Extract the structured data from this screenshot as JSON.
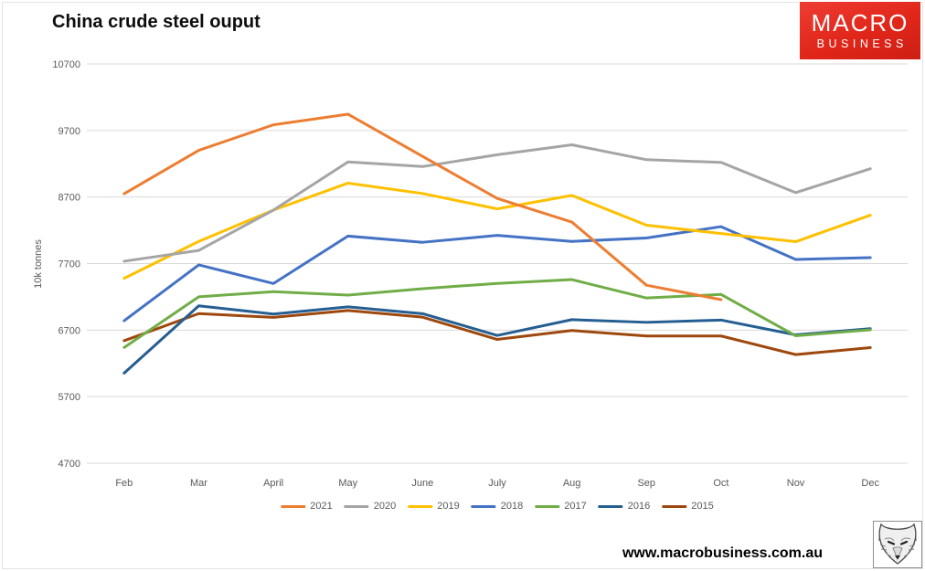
{
  "header": {
    "title": "China crude steel ouput"
  },
  "logo": {
    "line1": "MACRO",
    "line2": "BUSINESS",
    "bg_color": "#e02619",
    "text_color": "#ffffff"
  },
  "footer": {
    "website": "www.macrobusiness.com.au"
  },
  "axis_style": {
    "tick_color": "#595959",
    "grid_color": "#d9d9d9"
  },
  "chart_data": {
    "type": "line",
    "title": "China crude steel ouput",
    "xlabel": "",
    "ylabel": "10k tonnes",
    "categories": [
      "Feb",
      "Mar",
      "April",
      "May",
      "June",
      "July",
      "Aug",
      "Sep",
      "Oct",
      "Nov",
      "Dec"
    ],
    "ylim": [
      4700,
      10700
    ],
    "yticks": [
      10700,
      9700,
      8700,
      7700,
      6700,
      5700,
      4700
    ],
    "grid": "horizontal",
    "legend_position": "bottom",
    "series": [
      {
        "name": "2021",
        "color": "#ED7D31",
        "values": [
          8750,
          9402,
          9785,
          9945,
          9310,
          8679,
          8324,
          7375,
          7158,
          null,
          null
        ]
      },
      {
        "name": "2020",
        "color": "#A5A5A5",
        "values": [
          7735,
          7898,
          8503,
          9227,
          9158,
          9336,
          9485,
          9261,
          9220,
          8766,
          9125
        ]
      },
      {
        "name": "2019",
        "color": "#FFC000",
        "values": [
          7479,
          8033,
          8503,
          8909,
          8753,
          8522,
          8725,
          8277,
          8152,
          8029,
          8427
        ]
      },
      {
        "name": "2018",
        "color": "#4472C4",
        "values": [
          6841,
          7680,
          7400,
          8113,
          8020,
          8124,
          8033,
          8085,
          8255,
          7762,
          7790
        ]
      },
      {
        "name": "2017",
        "color": "#70AD47",
        "values": [
          6439,
          7200,
          7278,
          7226,
          7323,
          7402,
          7459,
          7183,
          7236,
          6615,
          6705
        ]
      },
      {
        "name": "2016",
        "color": "#255E91",
        "values": [
          6054,
          7065,
          6942,
          7050,
          6947,
          6620,
          6857,
          6817,
          6851,
          6629,
          6722
        ]
      },
      {
        "name": "2015",
        "color": "#9E480E",
        "values": [
          6541,
          6948,
          6891,
          6995,
          6895,
          6560,
          6694,
          6612,
          6612,
          6332,
          6437
        ]
      }
    ]
  }
}
